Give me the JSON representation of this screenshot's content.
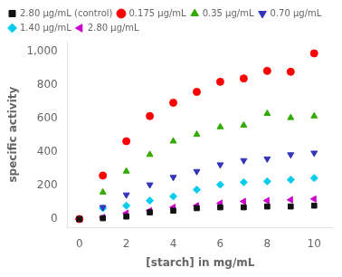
{
  "chart_data": {
    "type": "scatter",
    "x": [
      0,
      1,
      2,
      3,
      4,
      5,
      6,
      7,
      8,
      9,
      10
    ],
    "series": [
      {
        "name": "2.80 μg/mL (control)",
        "color": "#111111",
        "marker": "square",
        "values": [
          0,
          5,
          15,
          40,
          50,
          65,
          70,
          70,
          75,
          75,
          80
        ]
      },
      {
        "name": "0.175 μg/mL",
        "color": "#ff0000",
        "marker": "circle",
        "values": [
          0,
          260,
          465,
          615,
          695,
          760,
          820,
          840,
          885,
          880,
          990
        ]
      },
      {
        "name": "0.35 μg/mL",
        "color": "#33aa00",
        "marker": "triangle-up",
        "values": [
          0,
          160,
          285,
          385,
          465,
          505,
          550,
          560,
          630,
          605,
          615
        ]
      },
      {
        "name": "0.70 μg/mL",
        "color": "#3333bb",
        "marker": "triangle-down",
        "values": [
          0,
          70,
          145,
          205,
          250,
          285,
          325,
          350,
          360,
          385,
          395
        ]
      },
      {
        "name": "1.40 μg/mL",
        "color": "#00ccee",
        "marker": "diamond",
        "values": [
          0,
          65,
          80,
          110,
          135,
          175,
          205,
          220,
          225,
          235,
          245
        ]
      },
      {
        "name": "2.80 μg/mL",
        "color": "#cc00cc",
        "marker": "triangle-left",
        "values": [
          0,
          10,
          35,
          50,
          70,
          80,
          95,
          105,
          110,
          115,
          120
        ]
      }
    ],
    "x_label": "[starch] in mg/mL",
    "y_label": "specific activity",
    "xlim": [
      -0.5,
      10.8
    ],
    "ylim": [
      -50,
      1060
    ],
    "xticks": [
      0,
      2,
      4,
      6,
      8,
      10
    ],
    "yticks": [
      0,
      200,
      400,
      600,
      800,
      1000
    ],
    "grid": false,
    "legend": "upper left"
  }
}
